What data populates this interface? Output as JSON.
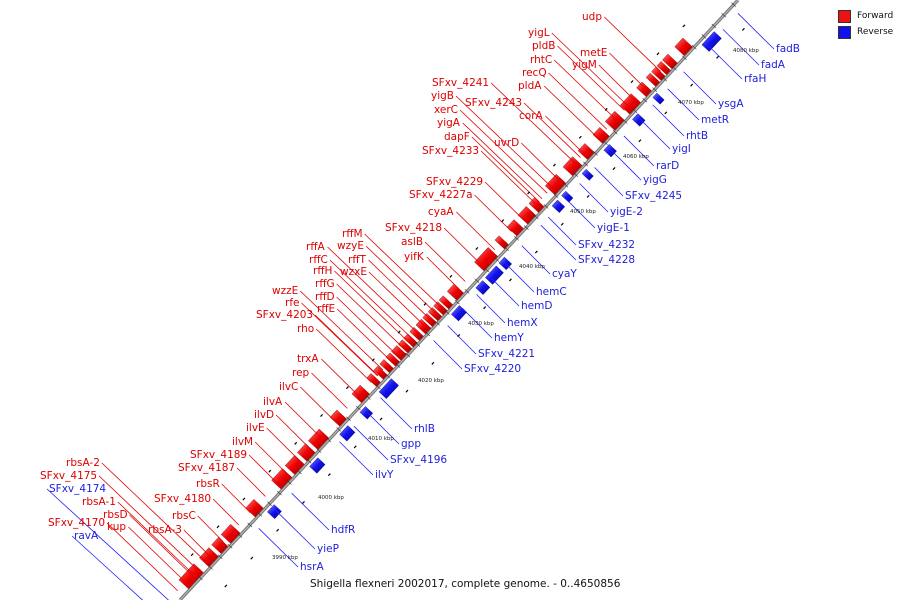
{
  "caption": "Shigella flexneri 2002017, complete genome. - 0..4650856",
  "legend": [
    {
      "label": "Forward",
      "color": "#ee1111"
    },
    {
      "label": "Reverse",
      "color": "#1111ee"
    }
  ],
  "ticks": [
    "3990 kbp",
    "4000 kbp",
    "4010 kbp",
    "4020 kbp",
    "4030 kbp",
    "4040 kbp",
    "4050 kbp",
    "4060 kbp",
    "4070 kbp",
    "4080 kbp"
  ],
  "forward_labels": [
    "udp",
    "yigL",
    "pldB",
    "metE",
    "rhtC",
    "yigM",
    "recQ",
    "pldA",
    "SFxv_4241",
    "yigB",
    "SFxv_4243",
    "xerC",
    "corA",
    "yigA",
    "dapF",
    "uvrD",
    "SFxv_4233",
    "SFxv_4229",
    "SFxv_4227a",
    "cyaA",
    "rffM",
    "SFxv_4218",
    "wzyE",
    "aslB",
    "rffA",
    "rffT",
    "yifK",
    "rffC",
    "rffH",
    "wzxE",
    "rffG",
    "wzzE",
    "rffD",
    "rfe",
    "rffE",
    "SFxv_4203",
    "rho",
    "trxA",
    "rep",
    "ilvC",
    "ilvA",
    "ilvD",
    "ilvE",
    "ilvM",
    "SFxv_4189",
    "SFxv_4187",
    "rbsR",
    "SFxv_4180",
    "rbsC",
    "rbsA-2",
    "SFxv_4175",
    "rbsA-1",
    "rbsA-3",
    "rbsD",
    "SFxv_4170",
    "kup"
  ],
  "reverse_labels": [
    "fadB",
    "fadA",
    "rfaH",
    "ysgA",
    "metR",
    "rhtB",
    "yigI",
    "rarD",
    "yigG",
    "SFxv_4245",
    "yigE-2",
    "yigE-1",
    "SFxv_4232",
    "SFxv_4228",
    "cyaY",
    "hemC",
    "hemD",
    "hemX",
    "hemY",
    "SFxv_4221",
    "SFxv_4220",
    "rhlB",
    "gpp",
    "SFxv_4196",
    "ilvY",
    "hdfR",
    "yieP",
    "hsrA",
    "SFxv_4174",
    "ravA"
  ]
}
